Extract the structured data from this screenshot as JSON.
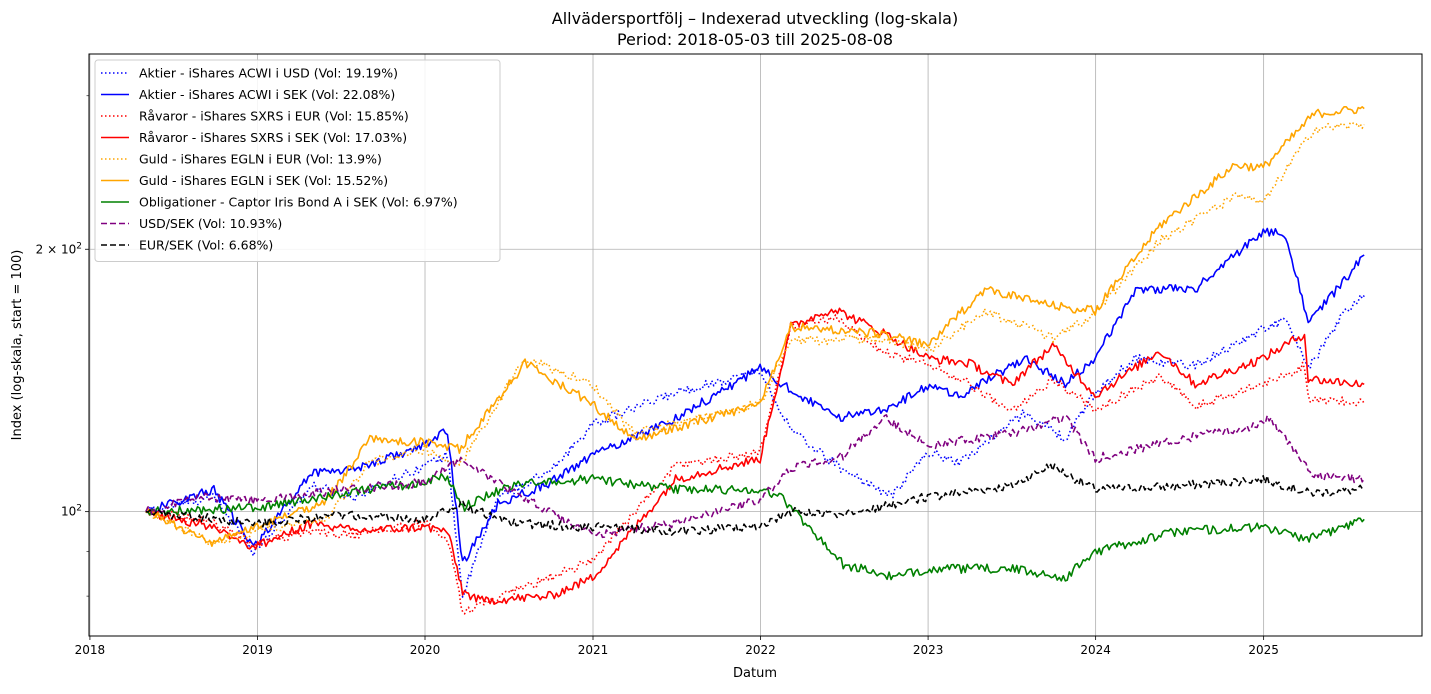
{
  "chart_data": {
    "type": "line",
    "title": "Allvädersportfölj – Indexerad utveckling (log-skala)",
    "subtitle": "Period: 2018-05-03 till 2025-08-08",
    "xlabel": "Datum",
    "ylabel": "Index (log-skala, start = 100)",
    "y_scale": "log",
    "xlim": [
      "2017-12-30",
      "2025-12-12"
    ],
    "ylim": [
      72,
      335
    ],
    "x_ticks": [
      {
        "date": "2018-01-01",
        "label": "2018"
      },
      {
        "date": "2019-01-01",
        "label": "2019"
      },
      {
        "date": "2020-01-01",
        "label": "2020"
      },
      {
        "date": "2021-01-01",
        "label": "2021"
      },
      {
        "date": "2022-01-01",
        "label": "2022"
      },
      {
        "date": "2023-01-01",
        "label": "2023"
      },
      {
        "date": "2024-01-01",
        "label": "2024"
      },
      {
        "date": "2025-01-01",
        "label": "2025"
      }
    ],
    "y_ticks": [
      {
        "value": 100,
        "label": "10",
        "exp": "2",
        "prefix": ""
      },
      {
        "value": 200,
        "label": "10",
        "exp": "2",
        "prefix": "2 × "
      }
    ],
    "grid": true,
    "legend_position": "top-left",
    "series": [
      {
        "name": "Aktier - iShares ACWI i USD (Vol: 19.19%)",
        "color": "#0000ff",
        "dash": "dotted",
        "points": [
          [
            "2018-05-03",
            100
          ],
          [
            "2018-09-28",
            104
          ],
          [
            "2018-12-24",
            90
          ],
          [
            "2019-04-30",
            107
          ],
          [
            "2019-08-01",
            104
          ],
          [
            "2019-12-31",
            113
          ],
          [
            "2020-02-19",
            116
          ],
          [
            "2020-03-23",
            80
          ],
          [
            "2020-06-08",
            104
          ],
          [
            "2020-09-30",
            111
          ],
          [
            "2020-12-31",
            126
          ],
          [
            "2021-06-30",
            137
          ],
          [
            "2021-12-31",
            145
          ],
          [
            "2022-03-08",
            124
          ],
          [
            "2022-06-16",
            113
          ],
          [
            "2022-10-12",
            104
          ],
          [
            "2022-12-31",
            117
          ],
          [
            "2023-03-13",
            114
          ],
          [
            "2023-07-31",
            130
          ],
          [
            "2023-10-27",
            121
          ],
          [
            "2023-12-31",
            137
          ],
          [
            "2024-03-28",
            150
          ],
          [
            "2024-08-05",
            147
          ],
          [
            "2024-12-31",
            162
          ],
          [
            "2025-02-18",
            166
          ],
          [
            "2025-04-08",
            146
          ],
          [
            "2025-06-30",
            170
          ],
          [
            "2025-08-08",
            177
          ]
        ]
      },
      {
        "name": "Aktier - iShares ACWI i SEK (Vol: 22.08%)",
        "color": "#0000ff",
        "dash": "solid",
        "points": [
          [
            "2018-05-03",
            100
          ],
          [
            "2018-09-28",
            106
          ],
          [
            "2018-12-24",
            91
          ],
          [
            "2019-04-30",
            111
          ],
          [
            "2019-08-01",
            112
          ],
          [
            "2019-12-31",
            119
          ],
          [
            "2020-02-19",
            124
          ],
          [
            "2020-03-23",
            87
          ],
          [
            "2020-06-08",
            102
          ],
          [
            "2020-09-30",
            108
          ],
          [
            "2020-12-31",
            116
          ],
          [
            "2021-06-30",
            128
          ],
          [
            "2021-12-31",
            146
          ],
          [
            "2022-03-08",
            138
          ],
          [
            "2022-06-16",
            128
          ],
          [
            "2022-10-12",
            132
          ],
          [
            "2022-12-31",
            139
          ],
          [
            "2023-03-13",
            136
          ],
          [
            "2023-07-31",
            150
          ],
          [
            "2023-10-27",
            140
          ],
          [
            "2023-12-31",
            150
          ],
          [
            "2024-03-28",
            180
          ],
          [
            "2024-08-05",
            180
          ],
          [
            "2024-12-31",
            210
          ],
          [
            "2025-02-18",
            208
          ],
          [
            "2025-04-08",
            165
          ],
          [
            "2025-06-30",
            185
          ],
          [
            "2025-08-08",
            197
          ]
        ]
      },
      {
        "name": "Råvaror - iShares SXRS i EUR (Vol: 15.85%)",
        "color": "#ff0000",
        "dash": "dotted",
        "points": [
          [
            "2018-05-03",
            100
          ],
          [
            "2018-09-28",
            97
          ],
          [
            "2018-12-24",
            92
          ],
          [
            "2019-04-30",
            95
          ],
          [
            "2019-08-01",
            94
          ],
          [
            "2019-12-31",
            97
          ],
          [
            "2020-02-19",
            93
          ],
          [
            "2020-03-23",
            77
          ],
          [
            "2020-04-30",
            78
          ],
          [
            "2020-09-30",
            84
          ],
          [
            "2020-12-31",
            88
          ],
          [
            "2021-06-30",
            113
          ],
          [
            "2021-12-31",
            117
          ],
          [
            "2022-03-08",
            163
          ],
          [
            "2022-06-09",
            167
          ],
          [
            "2022-09-30",
            152
          ],
          [
            "2022-12-31",
            148
          ],
          [
            "2023-03-31",
            140
          ],
          [
            "2023-06-30",
            130
          ],
          [
            "2023-09-29",
            142
          ],
          [
            "2023-12-31",
            131
          ],
          [
            "2024-05-20",
            143
          ],
          [
            "2024-08-05",
            132
          ],
          [
            "2024-12-31",
            140
          ],
          [
            "2025-03-31",
            147
          ],
          [
            "2025-04-08",
            135
          ],
          [
            "2025-08-08",
            133
          ]
        ]
      },
      {
        "name": "Råvaror - iShares SXRS i SEK (Vol: 17.03%)",
        "color": "#ff0000",
        "dash": "solid",
        "points": [
          [
            "2018-05-03",
            100
          ],
          [
            "2018-09-28",
            96
          ],
          [
            "2018-12-24",
            91
          ],
          [
            "2019-04-30",
            97
          ],
          [
            "2019-08-01",
            95
          ],
          [
            "2019-12-31",
            96
          ],
          [
            "2020-02-19",
            95
          ],
          [
            "2020-03-23",
            81
          ],
          [
            "2020-04-30",
            79
          ],
          [
            "2020-09-30",
            80
          ],
          [
            "2020-12-31",
            84
          ],
          [
            "2021-06-30",
            109
          ],
          [
            "2021-12-31",
            115
          ],
          [
            "2022-03-08",
            163
          ],
          [
            "2022-06-09",
            171
          ],
          [
            "2022-09-30",
            160
          ],
          [
            "2022-12-31",
            150
          ],
          [
            "2023-03-31",
            148
          ],
          [
            "2023-06-30",
            140
          ],
          [
            "2023-09-29",
            155
          ],
          [
            "2023-12-31",
            136
          ],
          [
            "2024-05-20",
            153
          ],
          [
            "2024-08-05",
            140
          ],
          [
            "2024-12-31",
            150
          ],
          [
            "2025-03-31",
            160
          ],
          [
            "2025-04-08",
            142
          ],
          [
            "2025-08-08",
            140
          ]
        ]
      },
      {
        "name": "Guld - iShares EGLN i EUR (Vol: 13.9%)",
        "color": "#ffa500",
        "dash": "dotted",
        "points": [
          [
            "2018-05-03",
            100
          ],
          [
            "2018-09-28",
            92
          ],
          [
            "2018-12-31",
            95
          ],
          [
            "2019-05-31",
            98
          ],
          [
            "2019-09-03",
            114
          ],
          [
            "2019-12-31",
            118
          ],
          [
            "2020-03-16",
            113
          ],
          [
            "2020-08-06",
            150
          ],
          [
            "2020-12-31",
            140
          ],
          [
            "2021-03-31",
            123
          ],
          [
            "2021-12-31",
            133
          ],
          [
            "2022-03-08",
            157
          ],
          [
            "2022-09-26",
            158
          ],
          [
            "2022-12-31",
            153
          ],
          [
            "2023-05-04",
            170
          ],
          [
            "2023-10-05",
            158
          ],
          [
            "2023-12-31",
            169
          ],
          [
            "2024-05-20",
            205
          ],
          [
            "2024-10-30",
            230
          ],
          [
            "2024-12-31",
            226
          ],
          [
            "2025-04-21",
            275
          ],
          [
            "2025-08-08",
            278
          ]
        ]
      },
      {
        "name": "Guld - iShares EGLN i SEK (Vol: 15.52%)",
        "color": "#ffa500",
        "dash": "solid",
        "points": [
          [
            "2018-05-03",
            100
          ],
          [
            "2018-09-28",
            92
          ],
          [
            "2018-12-31",
            96
          ],
          [
            "2019-05-31",
            103
          ],
          [
            "2019-09-03",
            121
          ],
          [
            "2019-12-31",
            120
          ],
          [
            "2020-03-16",
            118
          ],
          [
            "2020-08-06",
            148
          ],
          [
            "2020-12-31",
            133
          ],
          [
            "2021-03-31",
            121
          ],
          [
            "2021-12-31",
            133
          ],
          [
            "2022-03-08",
            163
          ],
          [
            "2022-09-26",
            160
          ],
          [
            "2022-12-31",
            155
          ],
          [
            "2023-05-04",
            180
          ],
          [
            "2023-10-05",
            172
          ],
          [
            "2023-12-31",
            170
          ],
          [
            "2024-05-20",
            213
          ],
          [
            "2024-10-30",
            250
          ],
          [
            "2024-12-31",
            248
          ],
          [
            "2025-04-21",
            286
          ],
          [
            "2025-08-08",
            290
          ]
        ]
      },
      {
        "name": "Obligationer - Captor Iris Bond A i SEK (Vol: 6.97%)",
        "color": "#008000",
        "dash": "solid",
        "points": [
          [
            "2018-05-03",
            100
          ],
          [
            "2018-12-31",
            101
          ],
          [
            "2019-06-30",
            105
          ],
          [
            "2019-12-31",
            108
          ],
          [
            "2020-02-19",
            110
          ],
          [
            "2020-03-23",
            101
          ],
          [
            "2020-06-30",
            107
          ],
          [
            "2020-12-31",
            109
          ],
          [
            "2021-06-30",
            106
          ],
          [
            "2021-12-31",
            106
          ],
          [
            "2022-02-15",
            104
          ],
          [
            "2022-06-30",
            87
          ],
          [
            "2022-10-21",
            84
          ],
          [
            "2022-12-31",
            86
          ],
          [
            "2023-06-30",
            86
          ],
          [
            "2023-10-27",
            84
          ],
          [
            "2023-12-31",
            90
          ],
          [
            "2024-06-30",
            95
          ],
          [
            "2024-12-31",
            96
          ],
          [
            "2025-04-10",
            93
          ],
          [
            "2025-08-08",
            98
          ]
        ]
      },
      {
        "name": "USD/SEK (Vol: 10.93%)",
        "color": "#800080",
        "dash": "dashed",
        "points": [
          [
            "2018-05-03",
            100
          ],
          [
            "2018-08-31",
            104
          ],
          [
            "2018-12-31",
            103
          ],
          [
            "2019-06-30",
            106
          ],
          [
            "2019-12-31",
            108
          ],
          [
            "2020-03-19",
            115
          ],
          [
            "2020-06-30",
            106
          ],
          [
            "2020-12-31",
            94
          ],
          [
            "2021-06-30",
            97
          ],
          [
            "2021-12-31",
            103
          ],
          [
            "2022-03-08",
            112
          ],
          [
            "2022-06-30",
            116
          ],
          [
            "2022-09-28",
            128
          ],
          [
            "2022-12-31",
            119
          ],
          [
            "2023-06-30",
            123
          ],
          [
            "2023-10-27",
            128
          ],
          [
            "2023-12-31",
            115
          ],
          [
            "2024-06-30",
            121
          ],
          [
            "2024-12-31",
            126
          ],
          [
            "2025-01-13",
            128
          ],
          [
            "2025-04-21",
            110
          ],
          [
            "2025-08-08",
            109
          ]
        ]
      },
      {
        "name": "EUR/SEK (Vol: 6.68%)",
        "color": "#000000",
        "dash": "dashed",
        "points": [
          [
            "2018-05-03",
            100
          ],
          [
            "2018-12-31",
            97
          ],
          [
            "2019-06-30",
            99
          ],
          [
            "2019-12-31",
            98
          ],
          [
            "2020-03-19",
            102
          ],
          [
            "2020-06-30",
            97
          ],
          [
            "2020-12-31",
            96
          ],
          [
            "2021-06-30",
            95
          ],
          [
            "2021-12-31",
            96
          ],
          [
            "2022-03-08",
            100
          ],
          [
            "2022-06-30",
            99
          ],
          [
            "2022-12-31",
            104
          ],
          [
            "2023-06-30",
            107
          ],
          [
            "2023-09-25",
            113
          ],
          [
            "2023-12-31",
            106
          ],
          [
            "2024-06-30",
            107
          ],
          [
            "2024-12-31",
            109
          ],
          [
            "2025-04-10",
            105
          ],
          [
            "2025-08-08",
            106
          ]
        ]
      }
    ]
  }
}
